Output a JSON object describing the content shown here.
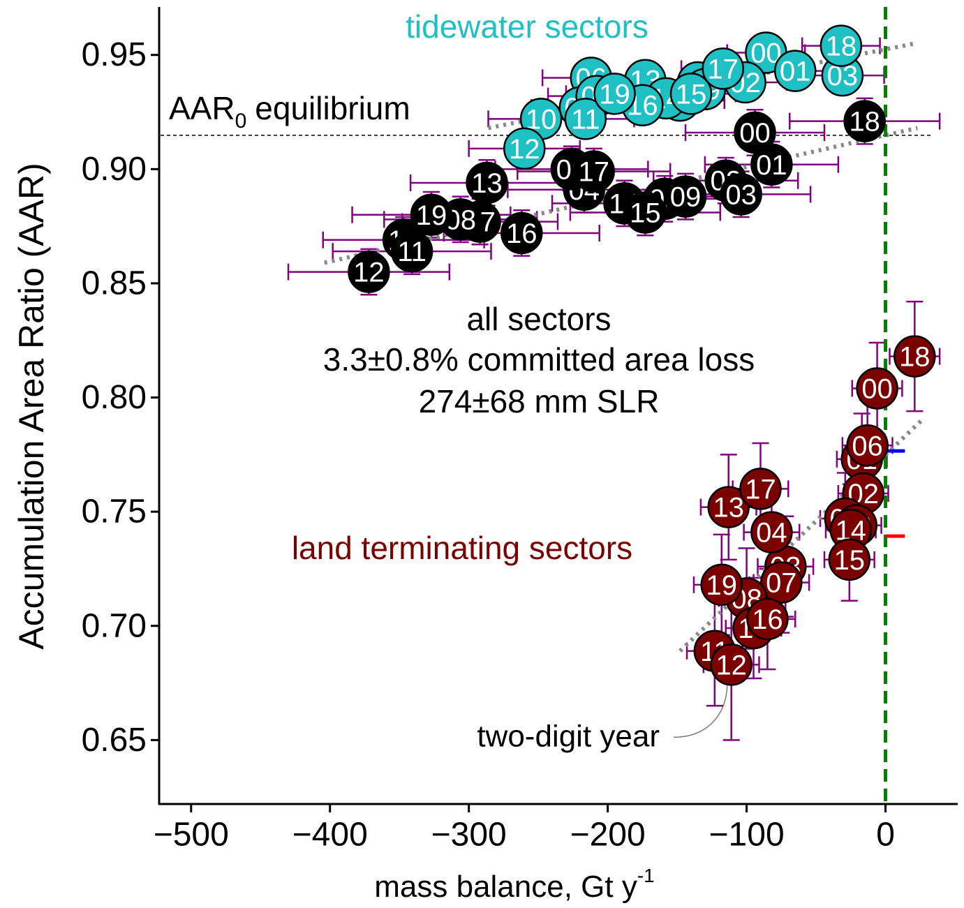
{
  "chart_data": {
    "type": "scatter",
    "x_label": "mass balance, Gt y",
    "x_label_sup": "-1",
    "y_label": "Accumulation Area Ratio (AAR)",
    "xlim": [
      -523,
      52
    ],
    "ylim": [
      0.622,
      0.971
    ],
    "xticks": [
      {
        "value": -500,
        "label": "−500"
      },
      {
        "value": -400,
        "label": "−400"
      },
      {
        "value": -300,
        "label": "−300"
      },
      {
        "value": -200,
        "label": "−200"
      },
      {
        "value": -100,
        "label": "−100"
      },
      0
    ],
    "yticks": [
      0.65,
      {
        "value": 0.7,
        "label": "0.70"
      },
      0.75,
      {
        "value": 0.8,
        "label": "0.80"
      },
      0.85,
      {
        "value": 0.9,
        "label": "0.90"
      },
      0.95
    ],
    "hline": {
      "y": 0.9148,
      "x": [
        -522,
        33
      ],
      "label": "AAR",
      "label_sub": "0",
      "label_rest": "equilibrium"
    },
    "vline": {
      "x": 0,
      "color": "#007f00"
    },
    "markers": [
      {
        "y": 0.7766,
        "x": [
          0,
          14
        ],
        "color": "#0000ff"
      },
      {
        "y": 0.7393,
        "x": [
          0,
          14
        ],
        "color": "#ff0000"
      }
    ],
    "annotations": [
      "3.3±0.8% committed area loss",
      "274±68 mm SLR"
    ],
    "note": {
      "text": "two-digit year",
      "target": [
        -111,
        0.683
      ]
    },
    "series": [
      {
        "name": "all sectors",
        "color": "#000000",
        "error_color": "#800080",
        "labels": [
          "00",
          "01",
          "02",
          "03",
          "04",
          "05",
          "06",
          "07",
          "08",
          "09",
          "10",
          "11",
          "12",
          "13",
          "14",
          "15",
          "16",
          "17",
          "18",
          "19"
        ],
        "x": [
          -94,
          -82,
          -115,
          -104,
          -217,
          -159,
          -226,
          -292,
          -306,
          -144,
          -347,
          -341,
          -372,
          -287,
          -188,
          -173,
          -262,
          -210,
          -15,
          -327
        ],
        "values": [
          0.916,
          0.902,
          0.895,
          0.889,
          0.891,
          0.887,
          0.9,
          0.877,
          0.878,
          0.888,
          0.869,
          0.864,
          0.855,
          0.894,
          0.885,
          0.881,
          0.872,
          0.899,
          0.921,
          0.88
        ],
        "x_err": [
          50,
          48,
          52,
          50,
          55,
          52,
          55,
          56,
          55,
          50,
          58,
          57,
          58,
          55,
          52,
          54,
          56,
          55,
          54,
          57
        ],
        "y_err": [
          0.01,
          0.01,
          0.01,
          0.01,
          0.01,
          0.01,
          0.01,
          0.01,
          0.01,
          0.01,
          0.01,
          0.01,
          0.01,
          0.01,
          0.01,
          0.01,
          0.01,
          0.01,
          0.01,
          0.01
        ],
        "trend": {
          "x": [
            -404,
            23
          ],
          "y": [
            0.859,
            0.918
          ]
        }
      },
      {
        "name": "tidewater sectors",
        "color": "#1fc0c4",
        "error_color": "#800080",
        "labels": [
          "00",
          "01",
          "02",
          "03",
          "04",
          "05",
          "06",
          "07",
          "08",
          "09",
          "10",
          "11",
          "12",
          "13",
          "14",
          "15",
          "16",
          "17",
          "18",
          "19"
        ],
        "x": [
          -86,
          -65,
          -101,
          -31,
          -135,
          -148,
          -212,
          -220,
          -208,
          -130,
          -248,
          -216,
          -260,
          -173,
          -158,
          -140,
          -175,
          -117,
          -32,
          -195
        ],
        "values": [
          0.951,
          0.943,
          0.938,
          0.941,
          0.938,
          0.93,
          0.94,
          0.927,
          0.932,
          0.935,
          0.922,
          0.922,
          0.909,
          0.939,
          0.931,
          0.933,
          0.928,
          0.944,
          0.954,
          0.933
        ],
        "x_err": [
          28,
          30,
          30,
          30,
          32,
          32,
          35,
          35,
          35,
          32,
          38,
          35,
          40,
          32,
          32,
          32,
          33,
          30,
          28,
          35
        ],
        "y_err": [
          0.007,
          0.007,
          0.007,
          0.007,
          0.007,
          0.007,
          0.007,
          0.007,
          0.007,
          0.007,
          0.007,
          0.007,
          0.007,
          0.007,
          0.007,
          0.007,
          0.007,
          0.007,
          0.007,
          0.007
        ],
        "trend": {
          "x": [
            -286,
            21
          ],
          "y": [
            0.918,
            0.955
          ]
        }
      },
      {
        "name": "land terminating sectors",
        "color": "#7b0000",
        "error_color": "#800080",
        "labels": [
          "00",
          "01",
          "02",
          "03",
          "04",
          "05",
          "06",
          "07",
          "08",
          "09",
          "10",
          "11",
          "12",
          "13",
          "14",
          "15",
          "16",
          "17",
          "18",
          "19"
        ],
        "x": [
          -6,
          -17,
          -16,
          -72,
          -82,
          -29,
          -13,
          -75,
          -100,
          -21,
          -95,
          -123,
          -111,
          -113,
          -25,
          -26,
          -85,
          -90,
          21,
          -118
        ],
        "values": [
          0.804,
          0.773,
          0.758,
          0.726,
          0.741,
          0.747,
          0.779,
          0.719,
          0.712,
          0.744,
          0.699,
          0.689,
          0.683,
          0.752,
          0.742,
          0.729,
          0.703,
          0.76,
          0.818,
          0.718
        ],
        "x_err": [
          18,
          18,
          18,
          20,
          20,
          18,
          18,
          20,
          20,
          18,
          20,
          20,
          20,
          20,
          18,
          18,
          20,
          20,
          18,
          20
        ],
        "y_err": [
          0.02,
          0.02,
          0.02,
          0.022,
          0.022,
          0.02,
          0.02,
          0.022,
          0.022,
          0.02,
          0.022,
          0.024,
          0.033,
          0.023,
          0.02,
          0.018,
          0.022,
          0.02,
          0.024,
          0.022
        ],
        "trend": {
          "x": [
            -148,
            26
          ],
          "y": [
            0.689,
            0.79
          ]
        }
      }
    ]
  }
}
